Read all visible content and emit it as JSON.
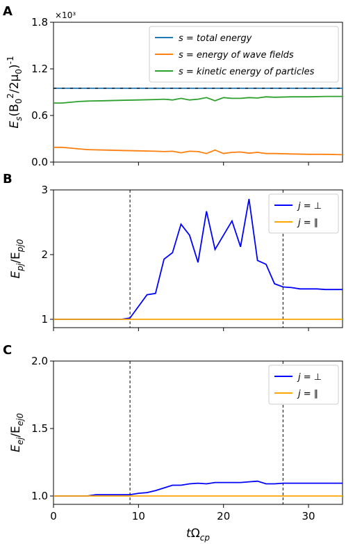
{
  "chart_data": [
    {
      "panel": "A",
      "type": "line",
      "ylabel": "E_s(B_0^2/2μ_0)^{-1}",
      "multiplier": "×10³",
      "xlim": [
        0,
        34
      ],
      "ylim": [
        0,
        1.8
      ],
      "yticks": [
        "0.0",
        "0.6",
        "1.2",
        "1.8"
      ],
      "legend_position": "top-right",
      "series": [
        {
          "name": "s = total energy",
          "color": "#1f77b4",
          "x": [
            0,
            2,
            4,
            6,
            8,
            10,
            12,
            14,
            16,
            18,
            20,
            22,
            24,
            26,
            28,
            30,
            32,
            34
          ],
          "y": [
            0.95,
            0.95,
            0.95,
            0.95,
            0.95,
            0.95,
            0.95,
            0.95,
            0.95,
            0.95,
            0.95,
            0.95,
            0.95,
            0.95,
            0.95,
            0.95,
            0.95,
            0.95
          ]
        },
        {
          "name": "s = energy of wave fields",
          "color": "#ff7f0e",
          "x": [
            0,
            1,
            2,
            3,
            4,
            6,
            8,
            10,
            12,
            13,
            14,
            15,
            16,
            17,
            18,
            19,
            20,
            21,
            22,
            23,
            24,
            25,
            26,
            28,
            30,
            32,
            34
          ],
          "y": [
            0.19,
            0.19,
            0.18,
            0.17,
            0.16,
            0.155,
            0.15,
            0.145,
            0.14,
            0.135,
            0.14,
            0.12,
            0.14,
            0.135,
            0.11,
            0.155,
            0.11,
            0.125,
            0.13,
            0.115,
            0.125,
            0.11,
            0.11,
            0.105,
            0.1,
            0.1,
            0.095
          ]
        },
        {
          "name": "s = kinetic energy of particles",
          "color": "#2ca02c",
          "x": [
            0,
            1,
            2,
            3,
            4,
            6,
            8,
            10,
            12,
            13,
            14,
            15,
            16,
            17,
            18,
            19,
            20,
            21,
            22,
            23,
            24,
            25,
            26,
            28,
            30,
            32,
            34
          ],
          "y": [
            0.76,
            0.76,
            0.77,
            0.78,
            0.785,
            0.79,
            0.795,
            0.8,
            0.805,
            0.81,
            0.8,
            0.82,
            0.8,
            0.81,
            0.83,
            0.79,
            0.83,
            0.82,
            0.82,
            0.83,
            0.825,
            0.84,
            0.835,
            0.84,
            0.84,
            0.845,
            0.845
          ]
        }
      ]
    },
    {
      "panel": "B",
      "type": "line",
      "ylabel": "E_pj/E_pj0",
      "xlim": [
        0,
        34
      ],
      "ylim": [
        0.9,
        3.0
      ],
      "yticks": [
        "1",
        "2",
        "3"
      ],
      "vlines": [
        9,
        27
      ],
      "legend_position": "top-right",
      "series": [
        {
          "name": "j = ⊥",
          "color": "#0000ff",
          "x": [
            0,
            2,
            4,
            6,
            8,
            9,
            10,
            11,
            12,
            13,
            14,
            15,
            16,
            17,
            18,
            19,
            20,
            21,
            22,
            23,
            24,
            25,
            26,
            27,
            28,
            29,
            30,
            31,
            32,
            33,
            34
          ],
          "y": [
            1.0,
            1.0,
            1.0,
            1.0,
            1.0,
            1.02,
            1.2,
            1.38,
            1.4,
            1.93,
            2.03,
            2.47,
            2.3,
            1.88,
            2.67,
            2.08,
            2.3,
            2.52,
            2.12,
            2.86,
            1.91,
            1.85,
            1.55,
            1.5,
            1.49,
            1.47,
            1.47,
            1.47,
            1.46,
            1.46,
            1.46
          ]
        },
        {
          "name": "j = ∥",
          "color": "#ffa500",
          "x": [
            0,
            4,
            8,
            12,
            16,
            20,
            24,
            28,
            32,
            34
          ],
          "y": [
            1.0,
            1.0,
            1.0,
            1.0,
            1.0,
            1.0,
            1.0,
            1.0,
            1.0,
            1.0
          ]
        }
      ]
    },
    {
      "panel": "C",
      "type": "line",
      "ylabel": "E_ej/E_ej0",
      "xlabel": "tΩ_cp",
      "xlim": [
        0,
        34
      ],
      "ylim": [
        0.97,
        2.0
      ],
      "yticks": [
        "1.0",
        "1.5",
        "2.0"
      ],
      "xticks": [
        "0",
        "10",
        "20",
        "30"
      ],
      "vlines": [
        9,
        27
      ],
      "legend_position": "top-right",
      "series": [
        {
          "name": "j = ⊥",
          "color": "#0000ff",
          "x": [
            0,
            2,
            4,
            5,
            6,
            8,
            9,
            10,
            11,
            12,
            13,
            14,
            15,
            16,
            17,
            18,
            19,
            20,
            21,
            22,
            23,
            24,
            25,
            26,
            27,
            28,
            30,
            32,
            34
          ],
          "y": [
            1.0,
            1.0,
            1.0,
            1.01,
            1.01,
            1.01,
            1.01,
            1.02,
            1.025,
            1.04,
            1.06,
            1.08,
            1.08,
            1.09,
            1.095,
            1.09,
            1.1,
            1.1,
            1.1,
            1.1,
            1.105,
            1.11,
            1.09,
            1.09,
            1.095,
            1.095,
            1.095,
            1.095,
            1.095
          ]
        },
        {
          "name": "j = ∥",
          "color": "#ffa500",
          "x": [
            0,
            4,
            8,
            12,
            16,
            20,
            24,
            28,
            32,
            34
          ],
          "y": [
            1.0,
            1.0,
            1.0,
            1.0,
            1.0,
            1.0,
            1.0,
            1.0,
            1.0,
            1.0
          ]
        }
      ]
    }
  ]
}
